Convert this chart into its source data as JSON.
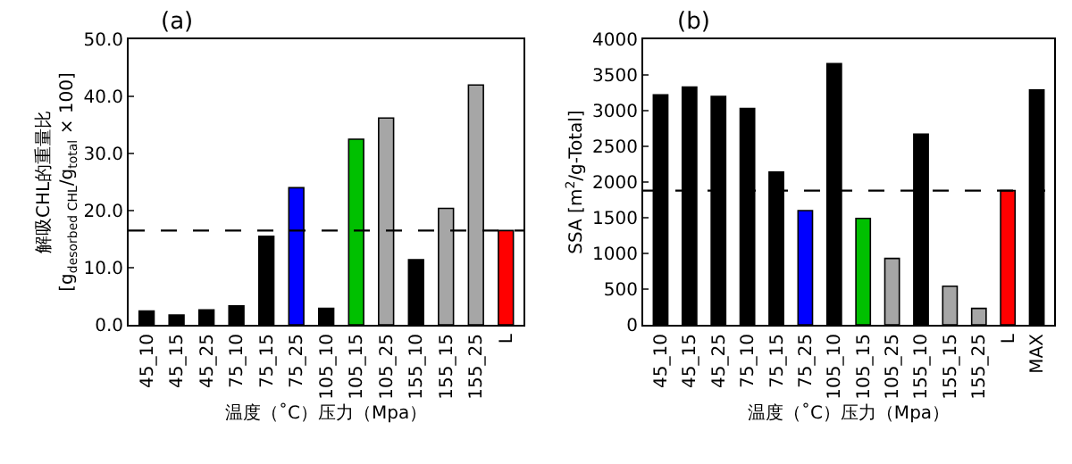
{
  "chart_data": [
    {
      "type": "bar",
      "title": "(a)",
      "xlabel": "温度（˚C）压力（Mpa）",
      "ylabel": "解吸CHL的重量比\n[g$_{desorbed CHL}$/g$_{total}$ × 100]",
      "categories": [
        "45_10",
        "45_15",
        "45_25",
        "75_10",
        "75_15",
        "75_25",
        "105_10",
        "105_15",
        "105_25",
        "155_10",
        "155_15",
        "155_25",
        "L"
      ],
      "values": [
        2.4,
        1.7,
        2.6,
        3.3,
        15.5,
        24.0,
        2.9,
        32.5,
        36.2,
        11.4,
        20.4,
        42.0,
        16.5
      ],
      "colors": [
        "#000000",
        "#000000",
        "#000000",
        "#000000",
        "#000000",
        "#0000ff",
        "#000000",
        "#00c000",
        "#a6a6a6",
        "#000000",
        "#a6a6a6",
        "#a6a6a6",
        "#ff0000"
      ],
      "ylim": [
        0,
        50
      ],
      "yticks": [
        {
          "value": 0,
          "label": "0.0"
        },
        {
          "value": 10,
          "label": "10.0"
        },
        {
          "value": 20,
          "label": "20.0"
        },
        {
          "value": 30,
          "label": "30.0"
        },
        {
          "value": 40,
          "label": "40.0"
        },
        {
          "value": 50,
          "label": "50.0"
        }
      ],
      "ref_lines": [
        {
          "axis": "y",
          "value": 16.5,
          "color": "#000000",
          "line_style": "dashed"
        }
      ]
    },
    {
      "type": "bar",
      "title": "(b)",
      "xlabel": "温度（˚C）压力（Mpa）",
      "ylabel": "SSA [m$^{2}$/g-Total]",
      "categories": [
        "45_10",
        "45_15",
        "45_25",
        "75_10",
        "75_15",
        "75_25",
        "105_10",
        "105_15",
        "105_25",
        "155_10",
        "155_15",
        "155_25",
        "L",
        "MAX"
      ],
      "values": [
        3220,
        3330,
        3200,
        3030,
        2140,
        1600,
        3660,
        1490,
        930,
        2670,
        540,
        230,
        1880,
        3290
      ],
      "colors": [
        "#000000",
        "#000000",
        "#000000",
        "#000000",
        "#000000",
        "#0000ff",
        "#000000",
        "#00c000",
        "#a6a6a6",
        "#000000",
        "#a6a6a6",
        "#a6a6a6",
        "#ff0000",
        "#000000"
      ],
      "ylim": [
        0,
        4000
      ],
      "yticks": [
        0,
        500,
        1000,
        1500,
        2000,
        2500,
        3000,
        3500,
        4000
      ],
      "ref_lines": [
        {
          "axis": "y",
          "value": 1880,
          "color": "#000000",
          "line_style": "dashed"
        }
      ]
    }
  ]
}
